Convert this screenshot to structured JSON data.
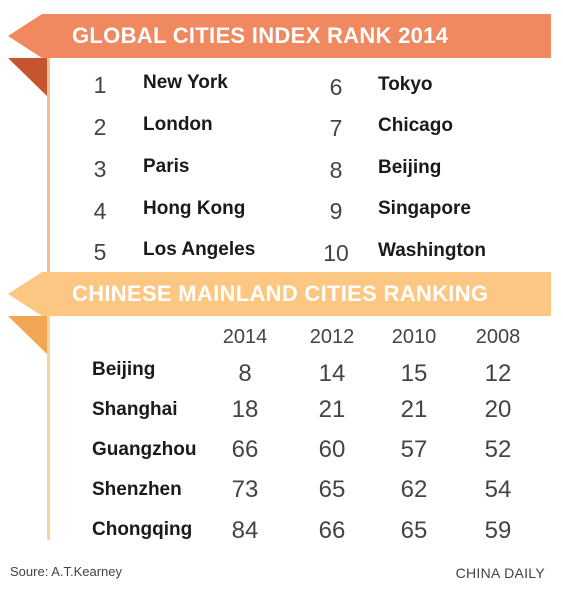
{
  "global": {
    "title": "GLOBAL CITIES INDEX RANK 2014",
    "left": [
      {
        "rank": "1",
        "city": "New York"
      },
      {
        "rank": "2",
        "city": "London"
      },
      {
        "rank": "3",
        "city": "Paris"
      },
      {
        "rank": "4",
        "city": "Hong Kong"
      },
      {
        "rank": "5",
        "city": "Los Angeles"
      }
    ],
    "right": [
      {
        "rank": "6",
        "city": "Tokyo"
      },
      {
        "rank": "7",
        "city": "Chicago"
      },
      {
        "rank": "8",
        "city": "Beijing"
      },
      {
        "rank": "9",
        "city": "Singapore"
      },
      {
        "rank": "10",
        "city": "Washington"
      }
    ]
  },
  "mainland": {
    "title": "CHINESE MAINLAND CITIES RANKING",
    "years": [
      "2014",
      "2012",
      "2010",
      "2008"
    ],
    "rows": [
      {
        "city": "Beijing",
        "values": [
          "8",
          "14",
          "15",
          "12"
        ]
      },
      {
        "city": "Shanghai",
        "values": [
          "18",
          "21",
          "21",
          "20"
        ]
      },
      {
        "city": "Guangzhou",
        "values": [
          "66",
          "60",
          "57",
          "52"
        ]
      },
      {
        "city": "Shenzhen",
        "values": [
          "73",
          "65",
          "62",
          "54"
        ]
      },
      {
        "city": "Chongqing",
        "values": [
          "84",
          "66",
          "65",
          "59"
        ]
      }
    ]
  },
  "footer": {
    "source": "Soure: A.T.Kearney",
    "credit": "CHINA DAILY"
  },
  "colors": {
    "banner1": "#f0895f",
    "banner1_fold": "#c5552f",
    "banner2": "#fbc783",
    "banner2_fold": "#f2a653"
  }
}
